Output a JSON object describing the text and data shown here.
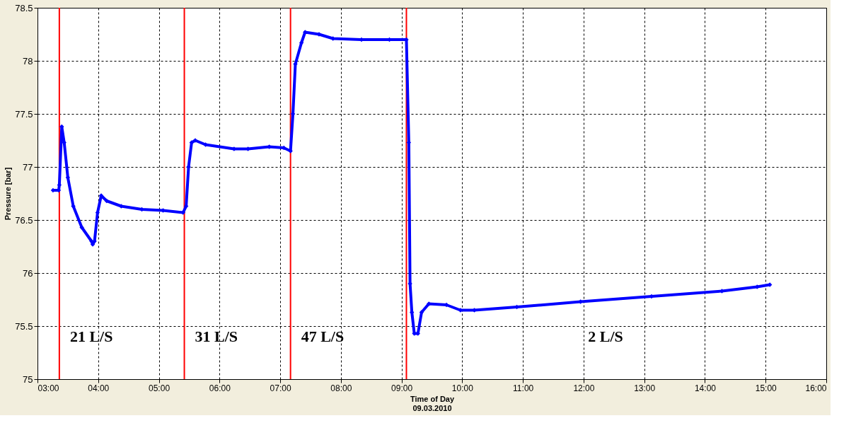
{
  "chart_data": {
    "type": "line",
    "xlabel": "Time of Day\n09.03.2010",
    "ylabel": "Pressure [bar]",
    "x": [
      3.256,
      3.35,
      3.36,
      3.4,
      3.44,
      3.5,
      3.59,
      3.73,
      3.89,
      3.91,
      3.94,
      3.99,
      4.05,
      4.14,
      4.38,
      4.72,
      5.07,
      5.4,
      5.45,
      5.49,
      5.54,
      5.6,
      5.77,
      6.24,
      6.47,
      6.82,
      7.06,
      7.17,
      7.21,
      7.25,
      7.35,
      7.41,
      7.64,
      7.87,
      8.34,
      8.8,
      9.08,
      9.12,
      9.14,
      9.17,
      9.21,
      9.27,
      9.33,
      9.45,
      9.74,
      9.97,
      10.2,
      10.9,
      11.95,
      13.12,
      14.28,
      14.86,
      15.07
    ],
    "series": [
      {
        "color": "#0000ff",
        "values": [
          76.78,
          76.78,
          76.83,
          77.38,
          77.23,
          76.9,
          76.63,
          76.43,
          76.3,
          76.27,
          76.3,
          76.57,
          76.73,
          76.68,
          76.63,
          76.6,
          76.59,
          76.57,
          76.63,
          77.0,
          77.23,
          77.25,
          77.21,
          77.17,
          77.17,
          77.19,
          77.18,
          77.15,
          77.5,
          77.97,
          78.17,
          78.27,
          78.25,
          78.21,
          78.2,
          78.2,
          78.2,
          77.23,
          75.9,
          75.63,
          75.43,
          75.43,
          75.63,
          75.71,
          75.7,
          75.65,
          75.65,
          75.68,
          75.73,
          75.78,
          75.83,
          75.87,
          75.89
        ]
      }
    ],
    "xlim": [
      3,
      16
    ],
    "xticks": [
      {
        "value": 3,
        "label": "03:00"
      },
      {
        "value": 4,
        "label": "04:00"
      },
      {
        "value": 5,
        "label": "05:00"
      },
      {
        "value": 6,
        "label": "06:00"
      },
      {
        "value": 7,
        "label": "07:00"
      },
      {
        "value": 8,
        "label": "08:00"
      },
      {
        "value": 9,
        "label": "09:00"
      },
      {
        "value": 10,
        "label": "10:00"
      },
      {
        "value": 11,
        "label": "11:00"
      },
      {
        "value": 12,
        "label": "12:00"
      },
      {
        "value": 13,
        "label": "13:00"
      },
      {
        "value": 14,
        "label": "14:00"
      },
      {
        "value": 15,
        "label": "15:00"
      },
      {
        "value": 16,
        "label": "16:00"
      }
    ],
    "ylim": [
      75,
      78.5
    ],
    "yticks": [
      75,
      75.5,
      76,
      76.5,
      77,
      77.5,
      78,
      78.5
    ],
    "grid": true,
    "marker": "diamond",
    "line_style": "solid",
    "ref_lines": [
      {
        "axis": "x",
        "value": 3.36,
        "color": "#ff0000"
      },
      {
        "axis": "x",
        "value": 5.42,
        "color": "#ff0000"
      },
      {
        "axis": "x",
        "value": 7.17,
        "color": "#ff0000"
      },
      {
        "axis": "x",
        "value": 9.08,
        "color": "#ff0000"
      }
    ],
    "annotations": [
      "21 L/S",
      "31 L/S",
      "47 L/S",
      "2 L/S"
    ]
  }
}
